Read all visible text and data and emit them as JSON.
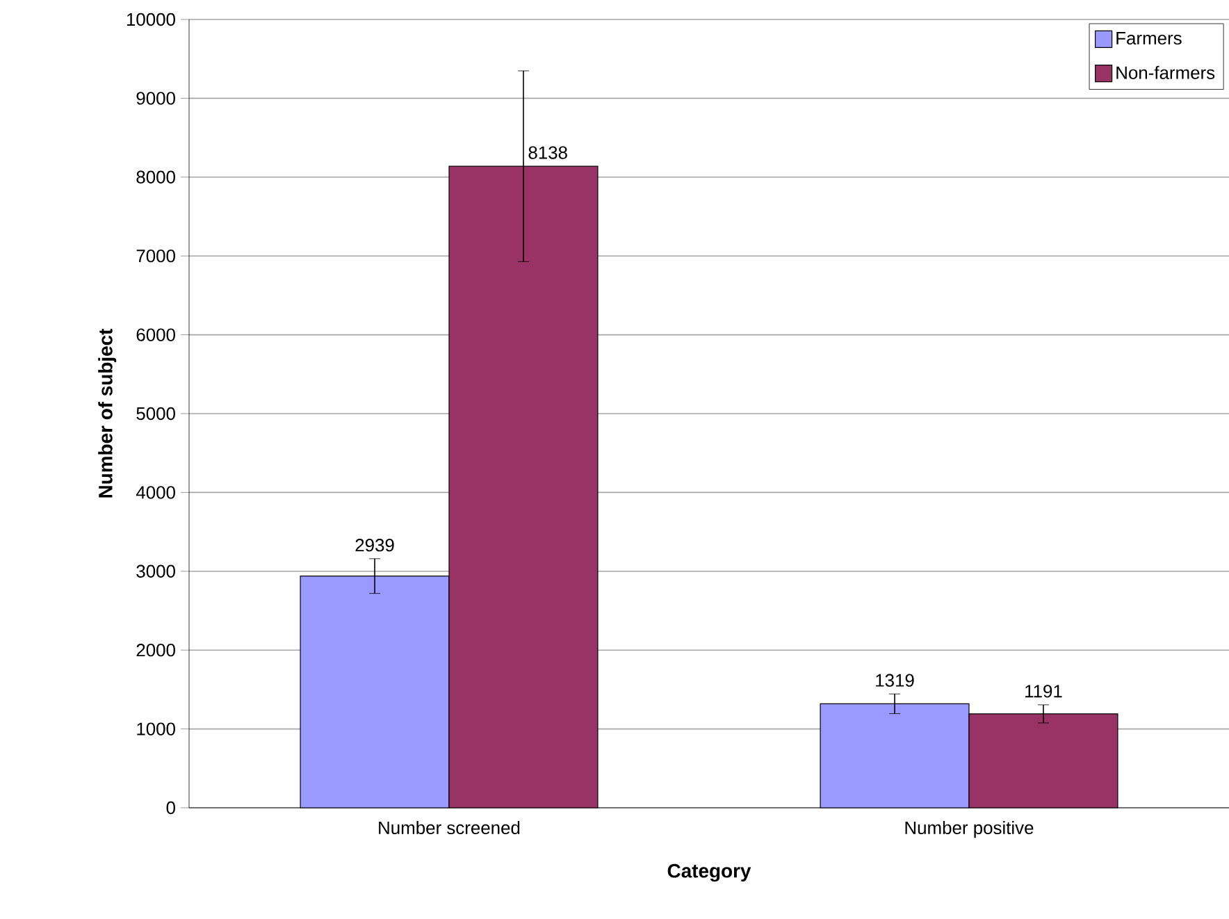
{
  "chart_data": {
    "type": "bar",
    "xlabel": "Category",
    "ylabel": "Number of subject",
    "categories": [
      "Number screened",
      "Number positive"
    ],
    "series": [
      {
        "name": "Farmers",
        "color": "#9999ff",
        "values": [
          2939,
          1319
        ],
        "errors": [
          220,
          125
        ]
      },
      {
        "name": "Non-farmers",
        "color": "#993366",
        "values": [
          8138,
          1191
        ],
        "errors": [
          1210,
          115
        ]
      }
    ],
    "ylim": [
      0,
      10000
    ],
    "yticks": [
      0,
      1000,
      2000,
      3000,
      4000,
      5000,
      6000,
      7000,
      8000,
      9000,
      10000
    ],
    "grid": "y",
    "legend": "top right",
    "data_labels": true
  }
}
